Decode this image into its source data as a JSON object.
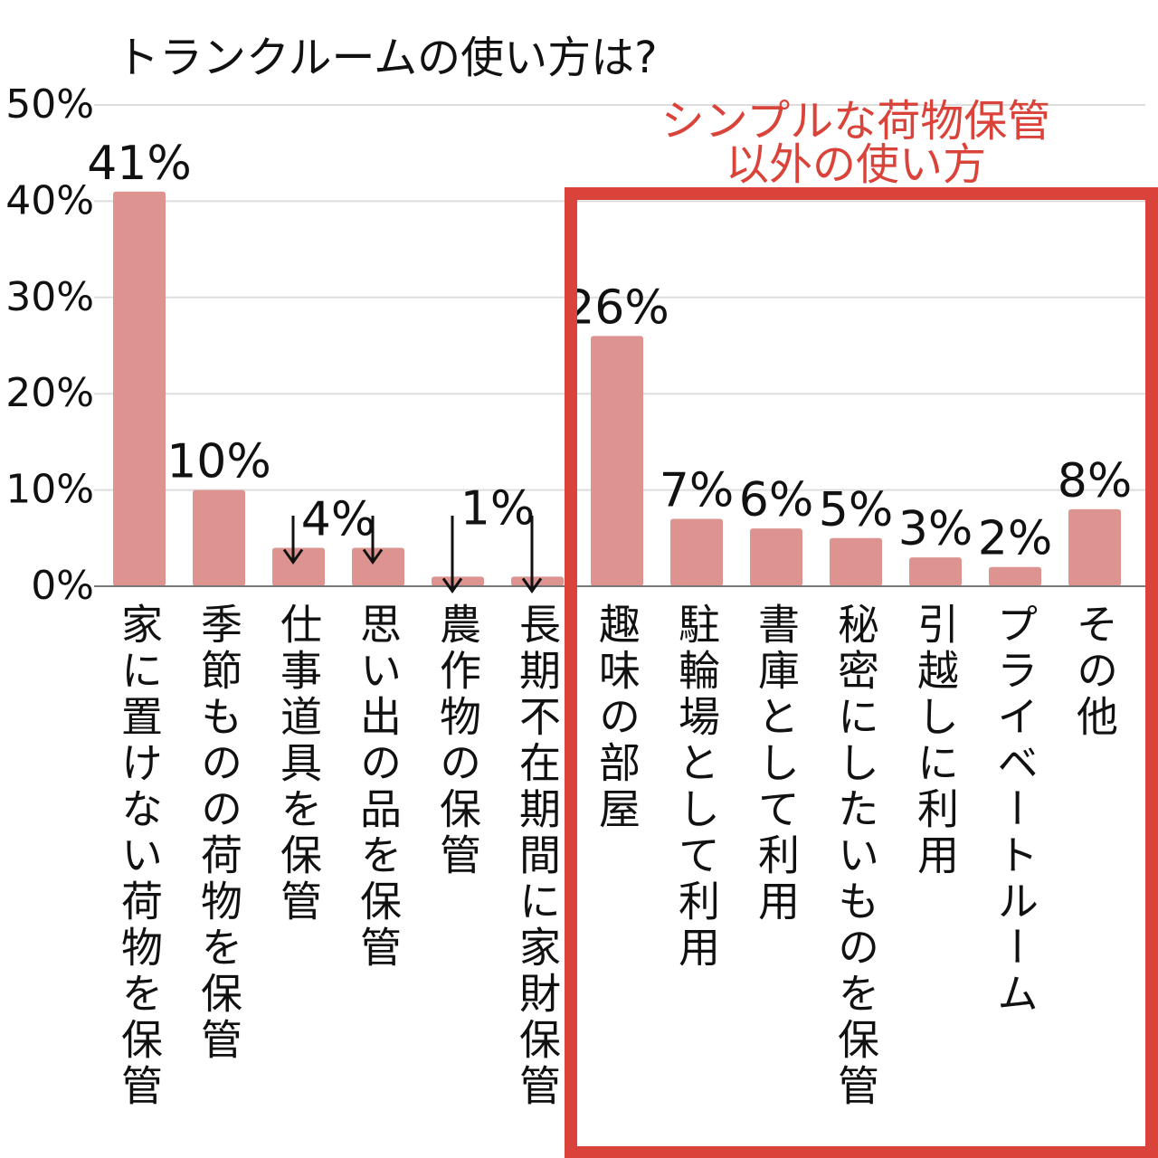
{
  "chart_data": {
    "type": "bar",
    "title": "トランクルームの使い方は?",
    "ylim": [
      0,
      50
    ],
    "yticks": [
      "0%",
      "10%",
      "20%",
      "30%",
      "40%",
      "50%"
    ],
    "grid": true,
    "categories": [
      "家に置けない荷物を保管",
      "季節ものの荷物を保管",
      "仕事道具を保管",
      "思い出の品を保管",
      "農作物の保管",
      "長期不在期間に家財保管",
      "趣味の部屋",
      "駐輪場として利用",
      "書庫として利用",
      "秘密にしたいものを保管",
      "引越しに利用",
      "プライベートルーム",
      "その他"
    ],
    "values": [
      41,
      10,
      4,
      4,
      1,
      1,
      26,
      7,
      6,
      5,
      3,
      2,
      8
    ],
    "data_labels": [
      "41%",
      "10%",
      "4%",
      "",
      "1%",
      "",
      "26%",
      "7%",
      "6%",
      "5%",
      "3%",
      "2%",
      "8%"
    ],
    "bar_color": "#dd9490",
    "highlight": {
      "text_line1": "シンプルな荷物保管",
      "text_line2": "以外の使い方",
      "color": "#d9433a"
    }
  }
}
